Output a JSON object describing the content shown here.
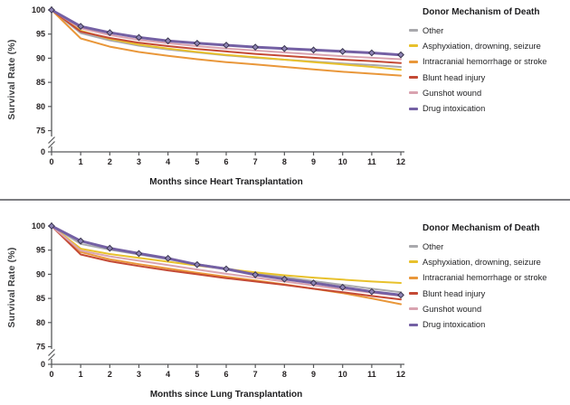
{
  "legend": {
    "title": "Donor Mechanism of Death",
    "items": [
      {
        "label": "Other",
        "color": "#a9a9ad"
      },
      {
        "label": "Asphyxiation, drowning, seizure",
        "color": "#e8c12c"
      },
      {
        "label": "Intracranial hemorrhage or stroke",
        "color": "#e9973a"
      },
      {
        "label": "Blunt head injury",
        "color": "#c44a35"
      },
      {
        "label": "Gunshot wound",
        "color": "#d9a3b0"
      },
      {
        "label": "Drug intoxication",
        "color": "#7460a4"
      }
    ]
  },
  "chart_data": [
    {
      "type": "line",
      "xlabel": "Months since Heart Transplantation",
      "ylabel": "Survival Rate (%)",
      "x": [
        0,
        1,
        2,
        3,
        4,
        5,
        6,
        7,
        8,
        9,
        10,
        11,
        12
      ],
      "xticks": [
        "0",
        "1",
        "2",
        "3",
        "4",
        "5",
        "6",
        "7",
        "8",
        "9",
        "10",
        "11",
        "12"
      ],
      "yticks": [
        "100",
        "95",
        "90",
        "85",
        "80",
        "75",
        "0"
      ],
      "axis_break": true,
      "ylim": [
        0,
        100
      ],
      "legend_position": "right",
      "series": [
        {
          "name": "Other",
          "color": "#a9a9ad",
          "marker": false,
          "values": [
            100,
            95.2,
            93.7,
            92.6,
            91.8,
            91.2,
            90.6,
            90.1,
            89.7,
            89.3,
            88.9,
            88.6,
            88.2
          ]
        },
        {
          "name": "Asphyxiation, drowning, seizure",
          "color": "#e8c12c",
          "marker": false,
          "values": [
            100,
            95.7,
            94.0,
            92.8,
            92.0,
            91.3,
            90.7,
            90.2,
            89.7,
            89.2,
            88.7,
            88.2,
            87.6
          ]
        },
        {
          "name": "Intracranial hemorrhage or stroke",
          "color": "#e9973a",
          "marker": false,
          "values": [
            100,
            94.1,
            92.4,
            91.3,
            90.5,
            89.8,
            89.2,
            88.7,
            88.2,
            87.7,
            87.2,
            86.8,
            86.4
          ]
        },
        {
          "name": "Blunt head injury",
          "color": "#c44a35",
          "marker": false,
          "values": [
            100,
            95.5,
            94.2,
            93.2,
            92.5,
            91.9,
            91.4,
            90.9,
            90.5,
            90.1,
            89.7,
            89.4,
            89.0
          ]
        },
        {
          "name": "Gunshot wound",
          "color": "#d9a3b0",
          "marker": false,
          "values": [
            100,
            96.2,
            94.8,
            93.8,
            93.1,
            92.5,
            92.0,
            91.6,
            91.2,
            90.8,
            90.4,
            90.1,
            89.8
          ]
        },
        {
          "name": "Drug intoxication",
          "color": "#7460a4",
          "marker": true,
          "values": [
            100,
            96.6,
            95.3,
            94.3,
            93.6,
            93.1,
            92.7,
            92.3,
            92.0,
            91.7,
            91.4,
            91.1,
            90.7
          ]
        }
      ]
    },
    {
      "type": "line",
      "xlabel": "Months since Lung Transplantation",
      "ylabel": "Survival Rate (%)",
      "x": [
        0,
        1,
        2,
        3,
        4,
        5,
        6,
        7,
        8,
        9,
        10,
        11,
        12
      ],
      "xticks": [
        "0",
        "1",
        "2",
        "3",
        "4",
        "5",
        "6",
        "7",
        "8",
        "9",
        "10",
        "11",
        "12"
      ],
      "yticks": [
        "100",
        "95",
        "90",
        "85",
        "80",
        "75",
        "0"
      ],
      "axis_break": true,
      "ylim": [
        0,
        100
      ],
      "legend_position": "right",
      "series": [
        {
          "name": "Other",
          "color": "#a9a9ad",
          "marker": false,
          "values": [
            100,
            96.3,
            95.1,
            94.1,
            93.1,
            92.1,
            91.2,
            90.2,
            89.4,
            88.6,
            87.8,
            87.0,
            86.3
          ]
        },
        {
          "name": "Asphyxiation, drowning, seizure",
          "color": "#e8c12c",
          "marker": false,
          "values": [
            100,
            95.3,
            94.2,
            93.4,
            92.6,
            91.8,
            91.1,
            90.4,
            89.8,
            89.3,
            88.9,
            88.5,
            88.2
          ]
        },
        {
          "name": "Intracranial hemorrhage or stroke",
          "color": "#e9973a",
          "marker": false,
          "values": [
            100,
            94.6,
            93.1,
            92.1,
            91.2,
            90.3,
            89.5,
            88.7,
            87.9,
            87.0,
            86.1,
            85.0,
            83.8
          ]
        },
        {
          "name": "Blunt head injury",
          "color": "#c44a35",
          "marker": false,
          "values": [
            100,
            94.1,
            92.7,
            91.7,
            90.8,
            90.0,
            89.2,
            88.5,
            87.8,
            87.0,
            86.3,
            85.5,
            84.8
          ]
        },
        {
          "name": "Gunshot wound",
          "color": "#d9a3b0",
          "marker": false,
          "values": [
            100,
            94.9,
            93.7,
            92.8,
            91.9,
            91.0,
            90.1,
            89.3,
            88.5,
            87.7,
            86.9,
            86.2,
            85.5
          ]
        },
        {
          "name": "Drug intoxication",
          "color": "#7460a4",
          "marker": true,
          "values": [
            100,
            96.9,
            95.4,
            94.3,
            93.3,
            92.0,
            91.1,
            89.9,
            89.0,
            88.2,
            87.3,
            86.4,
            85.7
          ]
        }
      ]
    }
  ]
}
